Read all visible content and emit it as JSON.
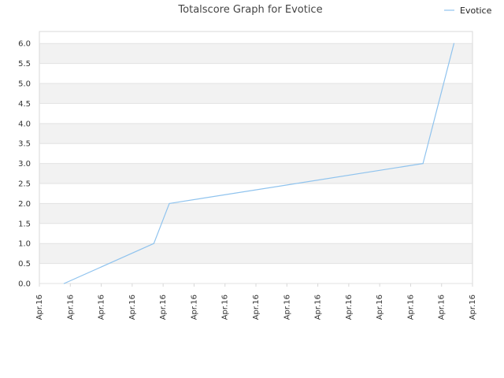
{
  "chart_data": {
    "type": "line",
    "title": "Totalscore Graph for Evotice",
    "xlabel": "",
    "ylabel": "",
    "ylim": [
      0,
      6.3
    ],
    "y_ticks": [
      "0.0",
      "0.5",
      "1.0",
      "1.5",
      "2.0",
      "2.5",
      "3.0",
      "3.5",
      "4.0",
      "4.5",
      "5.0",
      "5.5",
      "6.0"
    ],
    "x_tick_labels": [
      "Apr.16",
      "Apr.16",
      "Apr.16",
      "Apr.16",
      "Apr.16",
      "Apr.16",
      "Apr.16",
      "Apr.16",
      "Apr.16",
      "Apr.16",
      "Apr.16",
      "Apr.16",
      "Apr.16",
      "Apr.16",
      "Apr.16"
    ],
    "grid": "horizontal alternating bands",
    "legend_position": "top-right",
    "series": [
      {
        "name": "Evotice",
        "color": "#8fc3ee",
        "x_ticks": [
          0.8,
          3.7,
          4.2,
          12.4,
          13.4
        ],
        "values": [
          0,
          1,
          2,
          3,
          6
        ]
      }
    ],
    "colors": {
      "band_dark": "#f2f2f2",
      "band_light": "#ffffff",
      "grid_line": "#e2e2e2",
      "axis_line": "#d8d8d8"
    }
  }
}
